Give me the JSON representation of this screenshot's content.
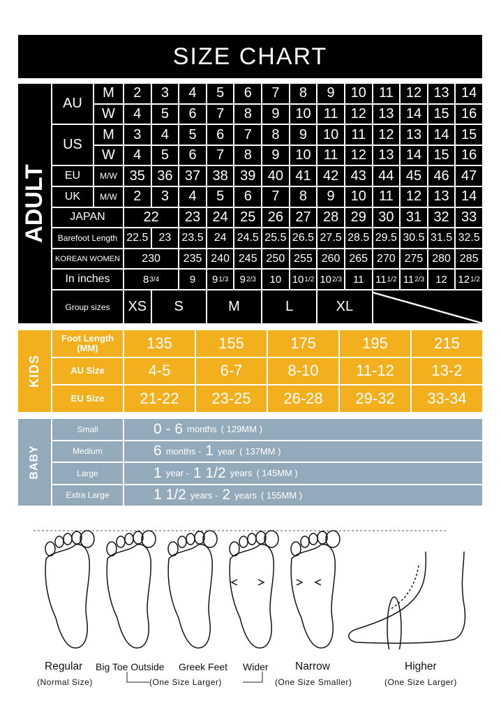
{
  "title": "SIZE CHART",
  "adult": {
    "label": "ADULT",
    "rows": [
      {
        "group": "AU",
        "sub": "M",
        "cells": [
          [
            "2"
          ],
          [
            "3"
          ],
          [
            "4"
          ],
          [
            "5"
          ],
          [
            "6"
          ],
          [
            "7"
          ],
          [
            "8"
          ],
          [
            "9"
          ],
          [
            "10"
          ],
          [
            "11"
          ],
          [
            "12"
          ],
          [
            "13"
          ],
          [
            "14"
          ]
        ]
      },
      {
        "group": "AU",
        "sub": "W",
        "cells": [
          [
            "4"
          ],
          [
            "5"
          ],
          [
            "6"
          ],
          [
            "7"
          ],
          [
            "8"
          ],
          [
            "9"
          ],
          [
            "10"
          ],
          [
            "11"
          ],
          [
            "12"
          ],
          [
            "13"
          ],
          [
            "14"
          ],
          [
            "15"
          ],
          [
            "16"
          ]
        ]
      },
      {
        "group": "US",
        "sub": "M",
        "cells": [
          [
            "3"
          ],
          [
            "4"
          ],
          [
            "5"
          ],
          [
            "6"
          ],
          [
            "7"
          ],
          [
            "8"
          ],
          [
            "9"
          ],
          [
            "10"
          ],
          [
            "11"
          ],
          [
            "12"
          ],
          [
            "13"
          ],
          [
            "14"
          ],
          [
            "15"
          ]
        ]
      },
      {
        "group": "US",
        "sub": "W",
        "cells": [
          [
            "4"
          ],
          [
            "5"
          ],
          [
            "6"
          ],
          [
            "7"
          ],
          [
            "8"
          ],
          [
            "9"
          ],
          [
            "10"
          ],
          [
            "11"
          ],
          [
            "12"
          ],
          [
            "13"
          ],
          [
            "14"
          ],
          [
            "15"
          ],
          [
            "16"
          ]
        ]
      },
      {
        "group": "EU",
        "sub": "M/W",
        "cells": [
          [
            "35"
          ],
          [
            "36"
          ],
          [
            "37"
          ],
          [
            "38"
          ],
          [
            "39"
          ],
          [
            "40"
          ],
          [
            "41"
          ],
          [
            "42"
          ],
          [
            "43"
          ],
          [
            "44"
          ],
          [
            "45"
          ],
          [
            "46"
          ],
          [
            "47"
          ]
        ]
      },
      {
        "group": "UK",
        "sub": "M/W",
        "cells": [
          [
            "2"
          ],
          [
            "3"
          ],
          [
            "4"
          ],
          [
            "5"
          ],
          [
            "6"
          ],
          [
            "7"
          ],
          [
            "8"
          ],
          [
            "9"
          ],
          [
            "10"
          ],
          [
            "11"
          ],
          [
            "12"
          ],
          [
            "13"
          ],
          [
            "14"
          ]
        ]
      },
      {
        "label": "JAPAN",
        "cells": [
          [
            "22",
            2
          ],
          [
            "23"
          ],
          [
            "24"
          ],
          [
            "25"
          ],
          [
            "26"
          ],
          [
            "27"
          ],
          [
            "28"
          ],
          [
            "29"
          ],
          [
            "30"
          ],
          [
            "31"
          ],
          [
            "32"
          ],
          [
            "33"
          ]
        ]
      },
      {
        "label": "Barefoot Length",
        "cells": [
          [
            "22.5"
          ],
          [
            "23"
          ],
          [
            "23.5"
          ],
          [
            "24"
          ],
          [
            "24.5"
          ],
          [
            "25.5"
          ],
          [
            "26.5"
          ],
          [
            "27.5"
          ],
          [
            "28.5"
          ],
          [
            "29.5"
          ],
          [
            "30.5"
          ],
          [
            "31.5"
          ],
          [
            "32.5"
          ]
        ]
      },
      {
        "label": "KOREAN WOMEN",
        "cells": [
          [
            "230",
            2
          ],
          [
            "235"
          ],
          [
            "240"
          ],
          [
            "245"
          ],
          [
            "250"
          ],
          [
            "255"
          ],
          [
            "260"
          ],
          [
            "265"
          ],
          [
            "270"
          ],
          [
            "275"
          ],
          [
            "280"
          ],
          [
            "285"
          ]
        ]
      },
      {
        "label": "In inches",
        "cells": [
          [
            "8",
            2,
            "3/4"
          ],
          [
            "9"
          ],
          [
            "9",
            1,
            "1/3"
          ],
          [
            "9",
            1,
            "2/3"
          ],
          [
            "10"
          ],
          [
            "10",
            1,
            "1/2"
          ],
          [
            "10",
            1,
            "2/3"
          ],
          [
            "11"
          ],
          [
            "11",
            1,
            "1/2"
          ],
          [
            "11",
            1,
            "2/3"
          ],
          [
            "12"
          ],
          [
            "12",
            1,
            "1/2"
          ]
        ]
      },
      {
        "label": "Group sizes",
        "cells": [
          [
            "XS"
          ],
          [
            "S",
            2
          ],
          [
            "M",
            2
          ],
          [
            "L",
            2
          ],
          [
            "XL",
            2
          ],
          [
            "",
            4
          ]
        ]
      }
    ]
  },
  "kids": {
    "label": "KIDS",
    "rows": [
      {
        "label": "Foot Length (MM)",
        "values": [
          "135",
          "155",
          "175",
          "195",
          "215"
        ]
      },
      {
        "label": "AU Size",
        "values": [
          "4-5",
          "6-7",
          "8-10",
          "11-12",
          "13-2"
        ]
      },
      {
        "label": "EU Size",
        "values": [
          "21-22",
          "23-25",
          "26-28",
          "29-32",
          "33-34"
        ]
      }
    ]
  },
  "baby": {
    "label": "BABY",
    "rows": [
      {
        "label": "Small",
        "parts": [
          [
            "0 - 6",
            1
          ],
          [
            "months",
            0
          ],
          [
            "( 129MM )",
            0
          ]
        ]
      },
      {
        "label": "Medium",
        "parts": [
          [
            "6",
            1
          ],
          [
            "months -",
            0
          ],
          [
            "1",
            1
          ],
          [
            "year",
            0
          ],
          [
            "( 137MM )",
            0
          ]
        ]
      },
      {
        "label": "Large",
        "parts": [
          [
            "1",
            1
          ],
          [
            "year -",
            0
          ],
          [
            "1 1/2",
            1
          ],
          [
            "years",
            0
          ],
          [
            "( 145MM )",
            0
          ]
        ]
      },
      {
        "label": "Extra Large",
        "parts": [
          [
            "1 1/2",
            1
          ],
          [
            "years -",
            0
          ],
          [
            "2",
            1
          ],
          [
            "years",
            0
          ],
          [
            "( 155MM )",
            0
          ]
        ]
      }
    ]
  },
  "feet": {
    "types": [
      "Regular",
      "Big Toe Outside",
      "Greek Feet",
      "Wider",
      "Narrow",
      "Higher"
    ],
    "notes": [
      "(Normal Size)",
      "(One Size Larger)",
      "(One Size Smaller)",
      "(One Size Larger)"
    ]
  },
  "colors": {
    "adult": "#000000",
    "kids": "#f2b01e",
    "baby": "#93aabb"
  }
}
